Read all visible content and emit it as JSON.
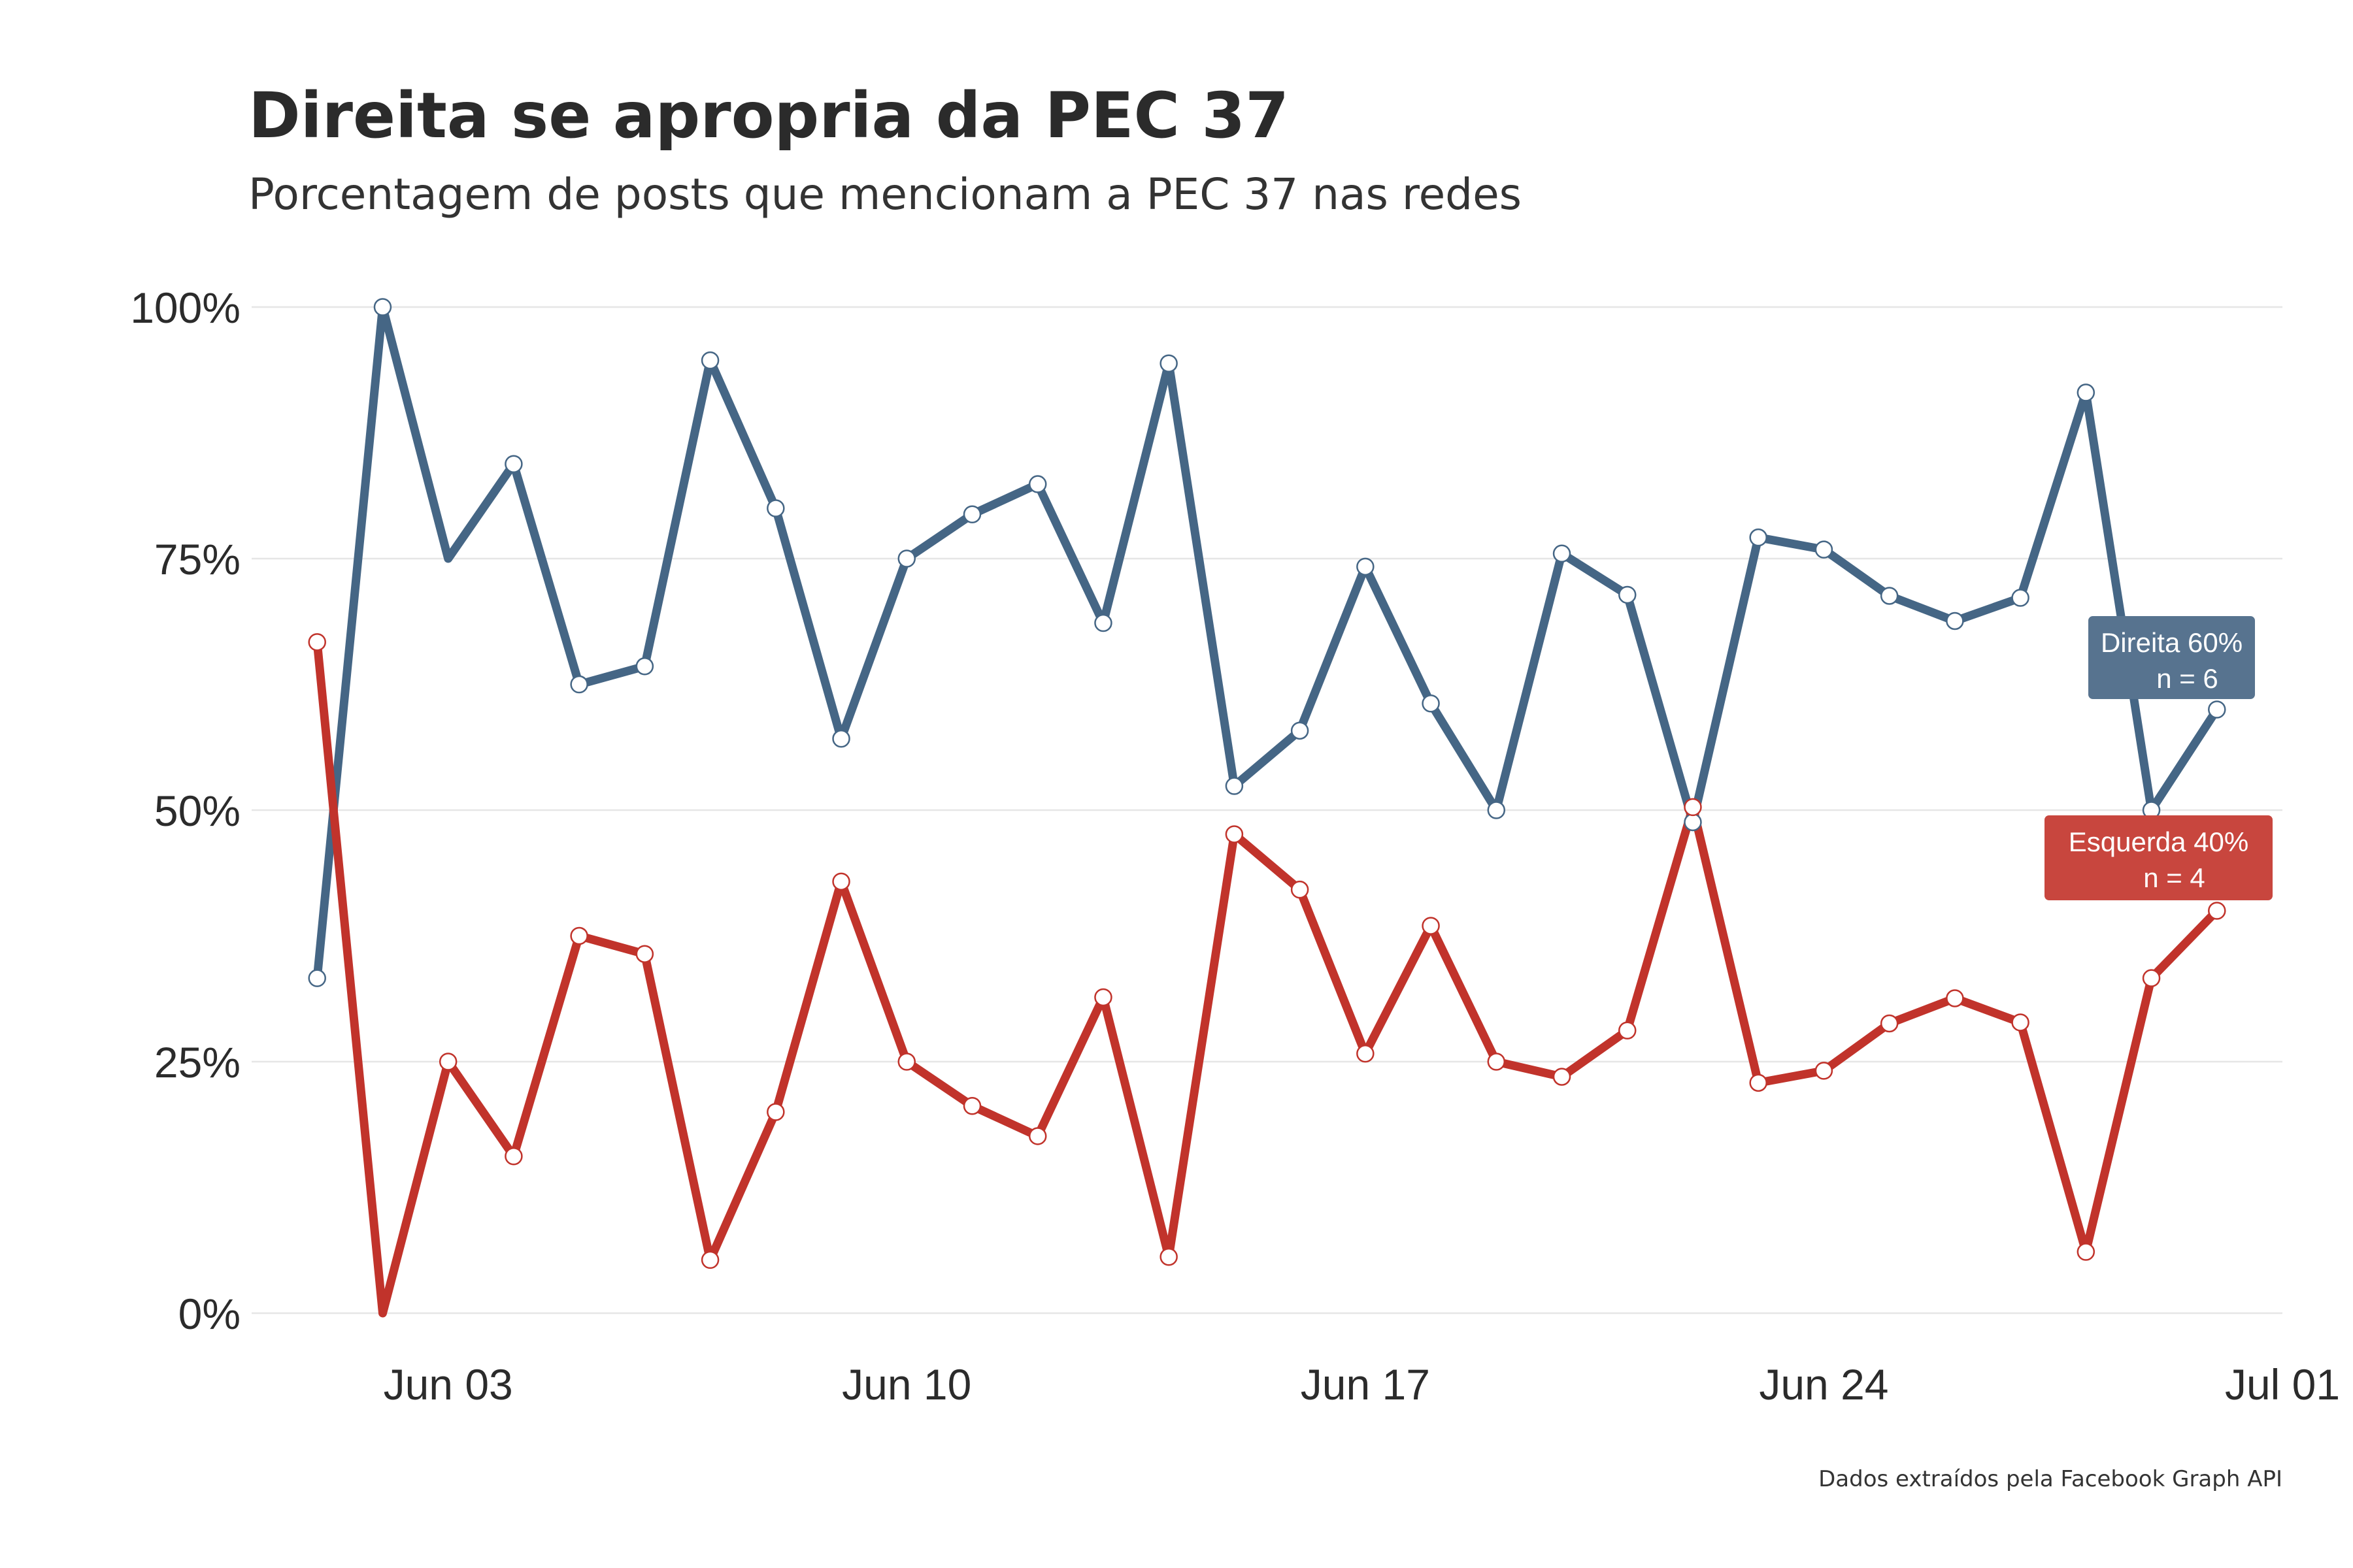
{
  "title": "Direita se apropria da PEC 37",
  "subtitle": "Porcentagem de posts que mencionam a PEC 37 nas redes",
  "caption": "Dados extraídos pela Facebook Graph API",
  "colors": {
    "direita": "#456685",
    "esquerda": "#c1332b",
    "direita_label_bg": "#57738f",
    "esquerda_label_bg": "#c8463e"
  },
  "chart_data": {
    "type": "line",
    "title": "Direita se apropria da PEC 37",
    "subtitle": "Porcentagem de posts que mencionam a PEC 37 nas redes",
    "xlabel": "",
    "ylabel": "",
    "x_tick_labels": [
      "Jun 03",
      "Jun 10",
      "Jun 17",
      "Jun 24",
      "Jul 01"
    ],
    "y_tick_labels": [
      "0%",
      "25%",
      "50%",
      "75%",
      "100%"
    ],
    "ylim": [
      0,
      100
    ],
    "xlim": [
      "2013-05-31",
      "2013-07-01"
    ],
    "grid": true,
    "dates": [
      "2013-06-01",
      "2013-06-02",
      "2013-06-03",
      "2013-06-04",
      "2013-06-05",
      "2013-06-06",
      "2013-06-07",
      "2013-06-08",
      "2013-06-09",
      "2013-06-10",
      "2013-06-11",
      "2013-06-12",
      "2013-06-13",
      "2013-06-14",
      "2013-06-15",
      "2013-06-16",
      "2013-06-17",
      "2013-06-18",
      "2013-06-19",
      "2013-06-20",
      "2013-06-21",
      "2013-06-22",
      "2013-06-23",
      "2013-06-24",
      "2013-06-25",
      "2013-06-26",
      "2013-06-27",
      "2013-06-28",
      "2013-06-29",
      "2013-06-30"
    ],
    "series": [
      {
        "name": "Direita",
        "values": [
          33.3,
          100,
          75,
          84.4,
          62.5,
          64.3,
          94.7,
          80,
          57.1,
          75,
          79.4,
          82.4,
          68.6,
          94.4,
          52.4,
          57.9,
          74.2,
          60.6,
          50,
          75.5,
          71.4,
          48.8,
          77.1,
          75.9,
          71.3,
          68.8,
          71.1,
          91.5,
          50,
          60
        ]
      },
      {
        "name": "Esquerda",
        "values": [
          66.7,
          0,
          25,
          15.6,
          37.5,
          35.7,
          5.3,
          20,
          42.9,
          25,
          20.6,
          17.6,
          31.4,
          5.6,
          47.6,
          42.1,
          25.8,
          38.5,
          25,
          23.5,
          28.1,
          50.3,
          22.9,
          24.1,
          28.8,
          31.3,
          28.9,
          6.1,
          33.3,
          40
        ]
      }
    ],
    "direita_hidden_points": [
      2
    ],
    "esquerda_hidden_points": [
      1
    ],
    "end_labels": [
      {
        "series": "Direita",
        "line1": "Direita 60%",
        "line2": "n = 6"
      },
      {
        "series": "Esquerda",
        "line1": "Esquerda 40%",
        "line2": "n = 4"
      }
    ]
  }
}
